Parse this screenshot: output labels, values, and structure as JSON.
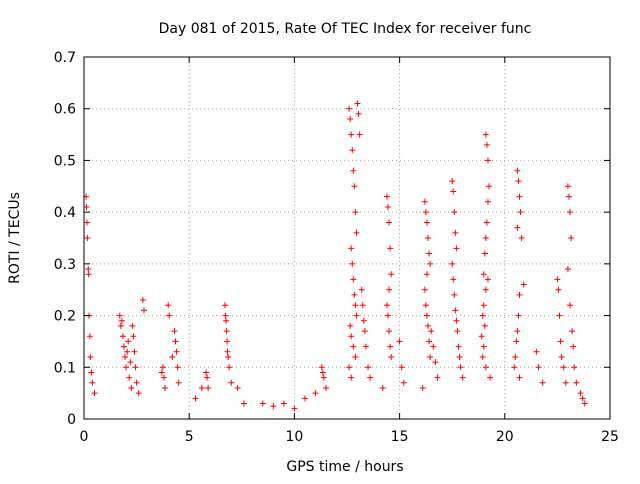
{
  "chart_data": {
    "type": "scatter",
    "title": "Day 081 of 2015, Rate Of TEC Index for receiver func",
    "xlabel": "GPS time / hours",
    "ylabel": "ROTI / TECUs",
    "xlim": [
      0,
      25
    ],
    "ylim": [
      0,
      0.7
    ],
    "grid": true,
    "marker": "+",
    "color": "#ff0000",
    "xticks": [
      {
        "value": 0,
        "label": "0"
      },
      {
        "value": 5,
        "label": "5"
      },
      {
        "value": 10,
        "label": "10"
      },
      {
        "value": 15,
        "label": "15"
      },
      {
        "value": 20,
        "label": "20"
      },
      {
        "value": 25,
        "label": "25"
      }
    ],
    "yticks": [
      {
        "value": 0,
        "label": "0"
      },
      {
        "value": 0.1,
        "label": "0.1"
      },
      {
        "value": 0.2,
        "label": "0.2"
      },
      {
        "value": 0.3,
        "label": "0.3"
      },
      {
        "value": 0.4,
        "label": "0.4"
      },
      {
        "value": 0.5,
        "label": "0.5"
      },
      {
        "value": 0.6,
        "label": "0.6"
      },
      {
        "value": 0.7,
        "label": "0.7"
      }
    ],
    "series": [
      {
        "name": "ROTI",
        "points": [
          [
            0.1,
            0.43
          ],
          [
            0.12,
            0.41
          ],
          [
            0.14,
            0.38
          ],
          [
            0.16,
            0.35
          ],
          [
            0.2,
            0.29
          ],
          [
            0.22,
            0.28
          ],
          [
            0.24,
            0.2
          ],
          [
            0.28,
            0.16
          ],
          [
            0.3,
            0.12
          ],
          [
            0.35,
            0.09
          ],
          [
            0.4,
            0.07
          ],
          [
            0.5,
            0.05
          ],
          [
            1.7,
            0.2
          ],
          [
            1.75,
            0.18
          ],
          [
            1.8,
            0.19
          ],
          [
            1.85,
            0.16
          ],
          [
            1.9,
            0.14
          ],
          [
            1.95,
            0.12
          ],
          [
            2.0,
            0.1
          ],
          [
            2.05,
            0.13
          ],
          [
            2.1,
            0.15
          ],
          [
            2.15,
            0.08
          ],
          [
            2.2,
            0.11
          ],
          [
            2.25,
            0.06
          ],
          [
            2.3,
            0.18
          ],
          [
            2.35,
            0.16
          ],
          [
            2.4,
            0.13
          ],
          [
            2.45,
            0.1
          ],
          [
            2.5,
            0.07
          ],
          [
            2.6,
            0.05
          ],
          [
            2.8,
            0.23
          ],
          [
            2.85,
            0.21
          ],
          [
            3.7,
            0.09
          ],
          [
            3.75,
            0.1
          ],
          [
            3.8,
            0.08
          ],
          [
            3.85,
            0.06
          ],
          [
            4.0,
            0.22
          ],
          [
            4.05,
            0.2
          ],
          [
            4.2,
            0.12
          ],
          [
            4.3,
            0.17
          ],
          [
            4.35,
            0.15
          ],
          [
            4.4,
            0.13
          ],
          [
            4.45,
            0.1
          ],
          [
            4.5,
            0.07
          ],
          [
            5.3,
            0.04
          ],
          [
            5.6,
            0.06
          ],
          [
            5.8,
            0.09
          ],
          [
            5.85,
            0.08
          ],
          [
            5.9,
            0.06
          ],
          [
            6.7,
            0.22
          ],
          [
            6.72,
            0.2
          ],
          [
            6.75,
            0.19
          ],
          [
            6.78,
            0.17
          ],
          [
            6.8,
            0.15
          ],
          [
            6.82,
            0.13
          ],
          [
            6.85,
            0.12
          ],
          [
            6.9,
            0.1
          ],
          [
            7.0,
            0.07
          ],
          [
            7.3,
            0.06
          ],
          [
            7.6,
            0.03
          ],
          [
            8.5,
            0.03
          ],
          [
            9.0,
            0.025
          ],
          [
            9.5,
            0.03
          ],
          [
            10.0,
            0.02
          ],
          [
            10.5,
            0.04
          ],
          [
            11.0,
            0.05
          ],
          [
            11.3,
            0.1
          ],
          [
            11.35,
            0.09
          ],
          [
            11.4,
            0.08
          ],
          [
            11.5,
            0.06
          ],
          [
            12.6,
            0.6
          ],
          [
            12.65,
            0.58
          ],
          [
            12.7,
            0.55
          ],
          [
            12.75,
            0.52
          ],
          [
            12.8,
            0.48
          ],
          [
            12.85,
            0.45
          ],
          [
            12.9,
            0.4
          ],
          [
            12.95,
            0.36
          ],
          [
            12.7,
            0.33
          ],
          [
            12.75,
            0.3
          ],
          [
            12.8,
            0.27
          ],
          [
            12.85,
            0.24
          ],
          [
            12.9,
            0.22
          ],
          [
            12.95,
            0.2
          ],
          [
            12.65,
            0.18
          ],
          [
            12.7,
            0.16
          ],
          [
            12.8,
            0.14
          ],
          [
            12.9,
            0.12
          ],
          [
            12.6,
            0.1
          ],
          [
            12.7,
            0.08
          ],
          [
            13.0,
            0.61
          ],
          [
            13.05,
            0.59
          ],
          [
            13.1,
            0.55
          ],
          [
            13.2,
            0.25
          ],
          [
            13.25,
            0.22
          ],
          [
            13.3,
            0.19
          ],
          [
            13.35,
            0.17
          ],
          [
            13.4,
            0.14
          ],
          [
            13.5,
            0.1
          ],
          [
            13.6,
            0.08
          ],
          [
            14.4,
            0.43
          ],
          [
            14.45,
            0.41
          ],
          [
            14.5,
            0.38
          ],
          [
            14.55,
            0.33
          ],
          [
            14.6,
            0.28
          ],
          [
            14.5,
            0.25
          ],
          [
            14.4,
            0.22
          ],
          [
            14.45,
            0.2
          ],
          [
            14.5,
            0.17
          ],
          [
            14.55,
            0.14
          ],
          [
            14.6,
            0.12
          ],
          [
            14.2,
            0.06
          ],
          [
            15.0,
            0.15
          ],
          [
            15.1,
            0.1
          ],
          [
            15.2,
            0.07
          ],
          [
            16.2,
            0.42
          ],
          [
            16.25,
            0.4
          ],
          [
            16.3,
            0.38
          ],
          [
            16.35,
            0.35
          ],
          [
            16.4,
            0.32
          ],
          [
            16.45,
            0.3
          ],
          [
            16.3,
            0.28
          ],
          [
            16.2,
            0.25
          ],
          [
            16.25,
            0.22
          ],
          [
            16.3,
            0.2
          ],
          [
            16.35,
            0.18
          ],
          [
            16.4,
            0.15
          ],
          [
            16.45,
            0.12
          ],
          [
            16.5,
            0.17
          ],
          [
            16.6,
            0.14
          ],
          [
            16.7,
            0.11
          ],
          [
            16.8,
            0.08
          ],
          [
            16.1,
            0.06
          ],
          [
            17.5,
            0.46
          ],
          [
            17.55,
            0.44
          ],
          [
            17.6,
            0.4
          ],
          [
            17.65,
            0.36
          ],
          [
            17.7,
            0.33
          ],
          [
            17.5,
            0.3
          ],
          [
            17.55,
            0.27
          ],
          [
            17.6,
            0.24
          ],
          [
            17.65,
            0.21
          ],
          [
            17.7,
            0.19
          ],
          [
            17.75,
            0.17
          ],
          [
            17.8,
            0.14
          ],
          [
            17.85,
            0.12
          ],
          [
            17.9,
            0.1
          ],
          [
            18.0,
            0.08
          ],
          [
            19.1,
            0.55
          ],
          [
            19.15,
            0.53
          ],
          [
            19.2,
            0.5
          ],
          [
            19.25,
            0.45
          ],
          [
            19.2,
            0.42
          ],
          [
            19.15,
            0.38
          ],
          [
            19.1,
            0.35
          ],
          [
            19.05,
            0.32
          ],
          [
            19.0,
            0.28
          ],
          [
            19.2,
            0.27
          ],
          [
            19.1,
            0.25
          ],
          [
            19.0,
            0.22
          ],
          [
            18.95,
            0.2
          ],
          [
            19.05,
            0.18
          ],
          [
            18.9,
            0.16
          ],
          [
            19.0,
            0.14
          ],
          [
            18.95,
            0.12
          ],
          [
            19.1,
            0.1
          ],
          [
            19.3,
            0.08
          ],
          [
            20.6,
            0.48
          ],
          [
            20.65,
            0.46
          ],
          [
            20.7,
            0.43
          ],
          [
            20.75,
            0.4
          ],
          [
            20.6,
            0.37
          ],
          [
            20.8,
            0.35
          ],
          [
            20.9,
            0.26
          ],
          [
            20.7,
            0.24
          ],
          [
            20.65,
            0.2
          ],
          [
            20.6,
            0.17
          ],
          [
            20.55,
            0.15
          ],
          [
            20.5,
            0.12
          ],
          [
            20.45,
            0.1
          ],
          [
            20.7,
            0.08
          ],
          [
            21.5,
            0.13
          ],
          [
            21.6,
            0.1
          ],
          [
            21.8,
            0.07
          ],
          [
            22.5,
            0.27
          ],
          [
            22.55,
            0.25
          ],
          [
            22.6,
            0.2
          ],
          [
            22.65,
            0.15
          ],
          [
            22.7,
            0.12
          ],
          [
            22.8,
            0.1
          ],
          [
            22.9,
            0.07
          ],
          [
            23.0,
            0.45
          ],
          [
            23.05,
            0.43
          ],
          [
            23.1,
            0.4
          ],
          [
            23.15,
            0.35
          ],
          [
            23.0,
            0.29
          ],
          [
            23.1,
            0.22
          ],
          [
            23.2,
            0.17
          ],
          [
            23.25,
            0.14
          ],
          [
            23.3,
            0.1
          ],
          [
            23.4,
            0.07
          ],
          [
            23.6,
            0.05
          ],
          [
            23.7,
            0.04
          ],
          [
            23.8,
            0.03
          ]
        ]
      }
    ]
  }
}
